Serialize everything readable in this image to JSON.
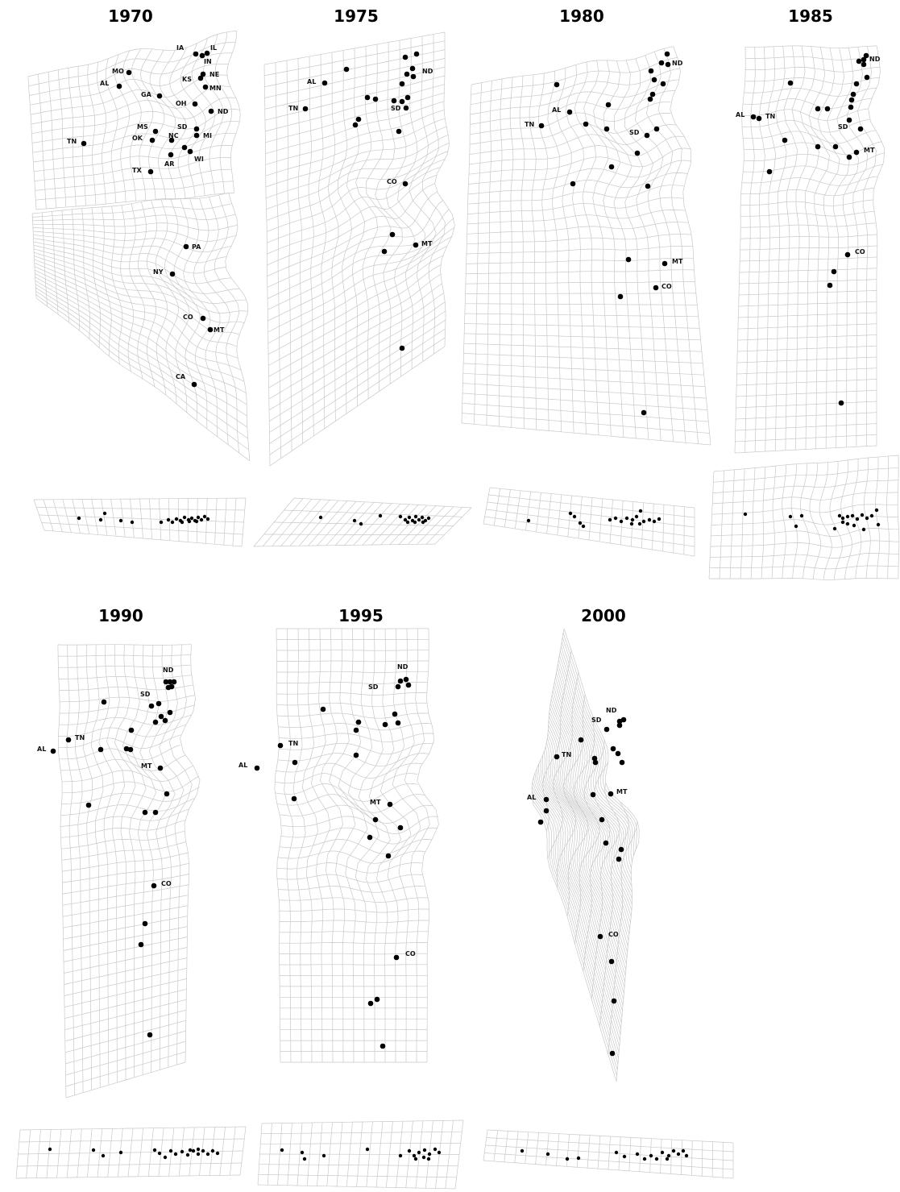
{
  "panels": [
    {
      "year": "1970",
      "labels": [
        "IA",
        "IL",
        "IN",
        "MO",
        "NE",
        "KS",
        "AL",
        "MN",
        "GA",
        "OH",
        "ND",
        "MS",
        "SD",
        "OK",
        "NC",
        "MI",
        "TN",
        "AR",
        "WI",
        "TX",
        "PA",
        "NY",
        "CO",
        "MT",
        "CA"
      ]
    },
    {
      "year": "1975",
      "labels": [
        "AL",
        "ND",
        "TN",
        "SD",
        "CO",
        "MT"
      ]
    },
    {
      "year": "1980",
      "labels": [
        "ND",
        "AL",
        "TN",
        "SD",
        "MT",
        "CO"
      ]
    },
    {
      "year": "1985",
      "labels": [
        "ND",
        "AL",
        "TN",
        "SD",
        "MT",
        "CO"
      ]
    },
    {
      "year": "1990",
      "labels": [
        "ND",
        "SD",
        "TN",
        "AL",
        "MT",
        "CO"
      ]
    },
    {
      "year": "1995",
      "labels": [
        "ND",
        "SD",
        "TN",
        "AL",
        "MT",
        "CO"
      ]
    },
    {
      "year": "2000",
      "labels": [
        "ND",
        "SD",
        "TN",
        "AL",
        "MT",
        "CO"
      ]
    }
  ]
}
